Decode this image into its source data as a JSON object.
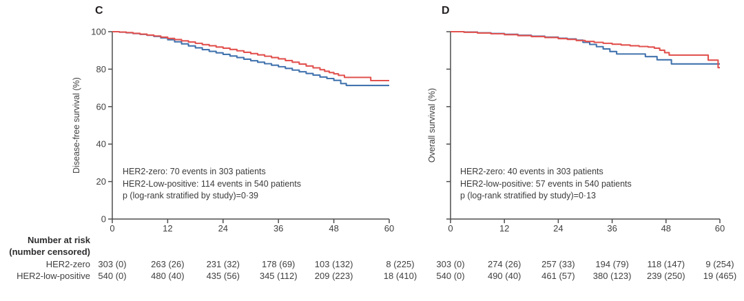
{
  "chart_data": [
    {
      "type": "line",
      "subtype": "kaplan-meier-step",
      "panel_label": "C",
      "ylabel": "Disease-free survival (%)",
      "xlim": [
        0,
        60
      ],
      "ylim": [
        0,
        100
      ],
      "xticks": [
        0,
        12,
        24,
        36,
        48,
        60
      ],
      "yticks": [
        100,
        80,
        60,
        40,
        20,
        0
      ],
      "show_y_tick_labels": true,
      "grid": false,
      "legend": "none",
      "annotation_lines": [
        "HER2-zero: 70 events in 303 patients",
        "HER2-Low-positive: 114 events in 540 patients",
        "p (log-rank stratified by study)=0·39"
      ],
      "series": [
        {
          "name": "HER2-zero",
          "color": "#4273ae",
          "points": [
            [
              0,
              100
            ],
            [
              1.5,
              99.8
            ],
            [
              3,
              99.4
            ],
            [
              4.5,
              99.0
            ],
            [
              6,
              98.6
            ],
            [
              7.5,
              98.1
            ],
            [
              9,
              97.5
            ],
            [
              10.5,
              96.7
            ],
            [
              12,
              95.7
            ],
            [
              13.5,
              94.6
            ],
            [
              15,
              93.5
            ],
            [
              16.5,
              92.4
            ],
            [
              18,
              91.4
            ],
            [
              19.5,
              90.4
            ],
            [
              21,
              89.5
            ],
            [
              22.5,
              88.7
            ],
            [
              24,
              87.9
            ],
            [
              25.5,
              87.0
            ],
            [
              27,
              86.2
            ],
            [
              28.5,
              85.3
            ],
            [
              30,
              84.5
            ],
            [
              31.5,
              83.7
            ],
            [
              33,
              82.9
            ],
            [
              34.5,
              82.1
            ],
            [
              36,
              81.3
            ],
            [
              37.5,
              80.4
            ],
            [
              39,
              79.5
            ],
            [
              40.5,
              78.6
            ],
            [
              42,
              77.7
            ],
            [
              43.5,
              76.8
            ],
            [
              45,
              75.8
            ],
            [
              46.5,
              75.0
            ],
            [
              48,
              74.0
            ],
            [
              49.5,
              72.3
            ],
            [
              50.7,
              71.3
            ],
            [
              60,
              71.3
            ]
          ]
        },
        {
          "name": "HER2-low-positive",
          "color": "#e1514e",
          "points": [
            [
              0,
              100
            ],
            [
              1.5,
              99.8
            ],
            [
              3,
              99.5
            ],
            [
              4.5,
              99.1
            ],
            [
              6,
              98.7
            ],
            [
              7.5,
              98.2
            ],
            [
              9,
              97.7
            ],
            [
              10.5,
              97.1
            ],
            [
              12,
              96.4
            ],
            [
              13.5,
              95.8
            ],
            [
              15,
              95.1
            ],
            [
              16.5,
              94.5
            ],
            [
              18,
              93.8
            ],
            [
              19.5,
              93.1
            ],
            [
              21,
              92.5
            ],
            [
              22.5,
              91.8
            ],
            [
              24,
              91.2
            ],
            [
              25.5,
              90.5
            ],
            [
              27,
              89.8
            ],
            [
              28.5,
              89.0
            ],
            [
              30,
              88.3
            ],
            [
              31.5,
              87.6
            ],
            [
              33,
              86.9
            ],
            [
              34.5,
              86.2
            ],
            [
              36,
              85.5
            ],
            [
              37.5,
              84.6
            ],
            [
              39,
              83.7
            ],
            [
              40.5,
              82.7
            ],
            [
              42,
              81.7
            ],
            [
              43.5,
              80.7
            ],
            [
              45,
              79.7
            ],
            [
              46,
              78.9
            ],
            [
              47,
              78.2
            ],
            [
              48,
              77.5
            ],
            [
              49,
              76.7
            ],
            [
              50.3,
              75.6
            ],
            [
              56,
              73.9
            ],
            [
              60,
              73.9
            ]
          ]
        }
      ]
    },
    {
      "type": "line",
      "subtype": "kaplan-meier-step",
      "panel_label": "D",
      "ylabel": "Overall survival (%)",
      "xlim": [
        0,
        60
      ],
      "ylim": [
        0,
        100
      ],
      "xticks": [
        0,
        12,
        24,
        36,
        48,
        60
      ],
      "yticks": [
        100,
        80,
        60,
        40,
        20,
        0
      ],
      "show_y_tick_labels": false,
      "grid": false,
      "legend": "none",
      "annotation_lines": [
        "HER2-zero: 40 events in 303 patients",
        "HER2-low-positive: 57 events in 540 patients",
        "p (log-rank stratified by study)=0·13"
      ],
      "series": [
        {
          "name": "HER2-zero",
          "color": "#4273ae",
          "points": [
            [
              0,
              100
            ],
            [
              3,
              99.8
            ],
            [
              6,
              99.4
            ],
            [
              9,
              99.0
            ],
            [
              12,
              98.6
            ],
            [
              15,
              98.1
            ],
            [
              18,
              97.6
            ],
            [
              21,
              97.1
            ],
            [
              24,
              96.5
            ],
            [
              26,
              96.1
            ],
            [
              28,
              95.5
            ],
            [
              29.5,
              94.3
            ],
            [
              31,
              93.2
            ],
            [
              32.5,
              92.0
            ],
            [
              34,
              90.8
            ],
            [
              35.5,
              89.4
            ],
            [
              37,
              88.1
            ],
            [
              43.4,
              86.7
            ],
            [
              46,
              85.0
            ],
            [
              49.2,
              82.8
            ],
            [
              60,
              82.8
            ]
          ]
        },
        {
          "name": "HER2-low-positive",
          "color": "#e1514e",
          "points": [
            [
              0,
              100
            ],
            [
              3,
              99.7
            ],
            [
              6,
              99.3
            ],
            [
              9,
              98.9
            ],
            [
              12,
              98.4
            ],
            [
              15,
              97.9
            ],
            [
              18,
              97.4
            ],
            [
              21,
              96.9
            ],
            [
              24,
              96.3
            ],
            [
              26,
              95.9
            ],
            [
              28,
              95.3
            ],
            [
              30,
              94.8
            ],
            [
              32,
              94.3
            ],
            [
              34,
              93.8
            ],
            [
              36,
              93.3
            ],
            [
              38,
              92.9
            ],
            [
              40,
              92.5
            ],
            [
              42,
              92.1
            ],
            [
              44,
              91.8
            ],
            [
              45.4,
              91.2
            ],
            [
              46.6,
              90.1
            ],
            [
              47.7,
              88.8
            ],
            [
              48.7,
              87.5
            ],
            [
              57.4,
              84.8
            ],
            [
              59.6,
              80.8
            ],
            [
              60,
              80.8
            ]
          ]
        }
      ]
    }
  ],
  "risk_table": {
    "header_line1": "Number at risk",
    "header_line2": "(number censored)",
    "row_labels": [
      "HER2-zero",
      "HER2-low-positive"
    ],
    "panels": [
      {
        "panel": "C",
        "rows": [
          [
            "303 (0)",
            "263 (26)",
            "231 (32)",
            "178 (69)",
            "103 (132)",
            "8 (225)"
          ],
          [
            "540 (0)",
            "480 (40)",
            "435 (56)",
            "345 (112)",
            "209 (223)",
            "18 (410)"
          ]
        ]
      },
      {
        "panel": "D",
        "rows": [
          [
            "303 (0)",
            "274 (26)",
            "257 (33)",
            "194 (79)",
            "118 (147)",
            "9 (254)"
          ],
          [
            "540 (0)",
            "490 (40)",
            "461 (57)",
            "380 (123)",
            "239 (250)",
            "19 (465)"
          ]
        ]
      }
    ]
  },
  "colors": {
    "her2_zero_line": "#4273ae",
    "her2_low_positive_line": "#e1514e",
    "axis": "#4d4d4f",
    "text": "#3f3f41"
  }
}
